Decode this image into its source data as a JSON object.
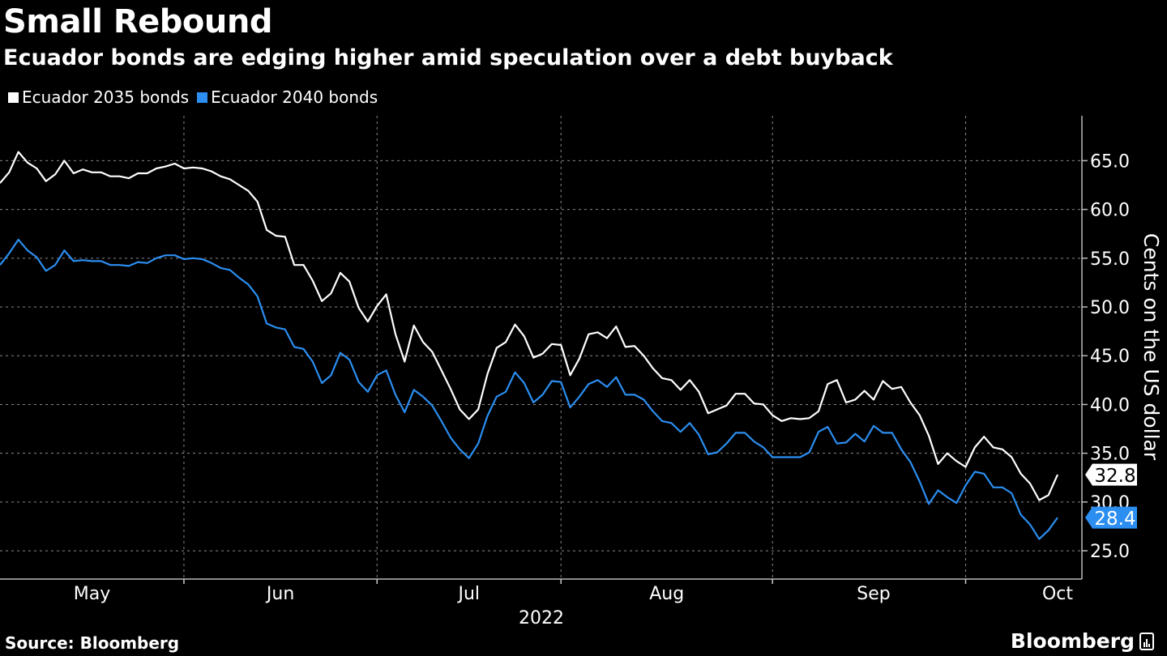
{
  "title": "Small Rebound",
  "subtitle": "Ecuador bonds are edging higher amid speculation over a debt buyback",
  "source": "Source: Bloomberg",
  "brand": "Bloomberg",
  "colors": {
    "background": "#000000",
    "series_2035": "#ffffff",
    "series_2040": "#2b8ef0",
    "grid": "#777777"
  },
  "chart_data": {
    "type": "line",
    "title": "Small Rebound",
    "subtitle": "Ecuador bonds are edging higher amid speculation over a debt buyback",
    "xlabel": "2022",
    "ylabel": "Cents on the US dollar",
    "ylim": [
      22.1,
      69.6
    ],
    "yticks": [
      25,
      30,
      35,
      40,
      45,
      50,
      55,
      60,
      65
    ],
    "ytick_labels": [
      "25.0",
      "30.0",
      "35.0",
      "40.0",
      "45.0",
      "50.0",
      "55.0",
      "60.0",
      "65.0"
    ],
    "x_unit": "trading day index (early May to early Oct 2022)",
    "month_boundaries": [
      20,
      41,
      61,
      84,
      105
    ],
    "month_labels": [
      {
        "label": "May",
        "at": 10
      },
      {
        "label": "Jun",
        "at": 30.5
      },
      {
        "label": "Jul",
        "at": 51
      },
      {
        "label": "Aug",
        "at": 72.5
      },
      {
        "label": "Sep",
        "at": 95
      },
      {
        "label": "Oct",
        "at": 115
      }
    ],
    "grid": true,
    "legend_position": "top-left",
    "series": [
      {
        "name": "Ecuador 2035 bonds",
        "color": "#ffffff",
        "last_label": "32.8",
        "values": [
          62.7,
          63.8,
          65.9,
          64.8,
          64.2,
          62.9,
          63.6,
          65.0,
          63.7,
          64.1,
          63.8,
          63.8,
          63.4,
          63.4,
          63.2,
          63.7,
          63.7,
          64.2,
          64.4,
          64.7,
          64.2,
          64.3,
          64.2,
          63.9,
          63.4,
          63.1,
          62.5,
          61.9,
          60.8,
          57.9,
          57.3,
          57.2,
          54.3,
          54.3,
          52.7,
          50.6,
          51.4,
          53.5,
          52.6,
          49.9,
          48.5,
          50.1,
          51.3,
          47.2,
          44.4,
          48.1,
          46.4,
          45.4,
          43.5,
          41.6,
          39.5,
          38.5,
          39.5,
          43.1,
          45.8,
          46.4,
          48.2,
          47.0,
          44.8,
          45.2,
          46.2,
          46.1,
          43.0,
          44.7,
          47.2,
          47.4,
          46.8,
          48.0,
          45.9,
          46.0,
          45.0,
          43.7,
          42.7,
          42.5,
          41.5,
          42.5,
          41.3,
          39.1,
          39.5,
          39.9,
          41.1,
          41.1,
          40.1,
          40.0,
          38.9,
          38.3,
          38.6,
          38.5,
          38.6,
          39.3,
          42.1,
          42.5,
          40.2,
          40.5,
          41.4,
          40.5,
          42.4,
          41.6,
          41.8,
          40.2,
          38.9,
          36.8,
          33.9,
          35.0,
          34.2,
          33.6,
          35.6,
          36.7,
          35.6,
          35.4,
          34.6,
          32.9,
          31.9,
          30.2,
          30.7,
          32.8
        ]
      },
      {
        "name": "Ecuador 2040 bonds",
        "color": "#2b8ef0",
        "last_label": "28.4",
        "values": [
          54.3,
          55.5,
          56.9,
          55.8,
          55.1,
          53.7,
          54.3,
          55.8,
          54.7,
          54.8,
          54.7,
          54.7,
          54.3,
          54.3,
          54.2,
          54.6,
          54.5,
          55.0,
          55.3,
          55.3,
          54.9,
          55.0,
          54.9,
          54.5,
          54.0,
          53.8,
          53.0,
          52.3,
          51.1,
          48.3,
          47.9,
          47.7,
          45.9,
          45.7,
          44.4,
          42.2,
          43.0,
          45.3,
          44.6,
          42.3,
          41.3,
          43.0,
          43.5,
          41.0,
          39.2,
          41.5,
          40.8,
          39.9,
          38.3,
          36.6,
          35.4,
          34.5,
          36.0,
          38.8,
          40.8,
          41.3,
          43.3,
          42.2,
          40.2,
          41.0,
          42.4,
          42.3,
          39.7,
          40.8,
          42.1,
          42.5,
          41.8,
          42.8,
          41.0,
          41.0,
          40.5,
          39.3,
          38.3,
          38.1,
          37.2,
          38.1,
          36.9,
          34.9,
          35.1,
          36.0,
          37.1,
          37.1,
          36.2,
          35.6,
          34.6,
          34.6,
          34.6,
          34.6,
          35.1,
          37.2,
          37.7,
          36.0,
          36.1,
          37.0,
          36.2,
          37.8,
          37.1,
          37.1,
          35.4,
          34.1,
          32.1,
          29.8,
          31.2,
          30.5,
          29.9,
          31.7,
          33.1,
          32.9,
          31.5,
          31.5,
          30.9,
          28.7,
          27.7,
          26.2,
          27.1,
          28.4
        ]
      }
    ]
  }
}
